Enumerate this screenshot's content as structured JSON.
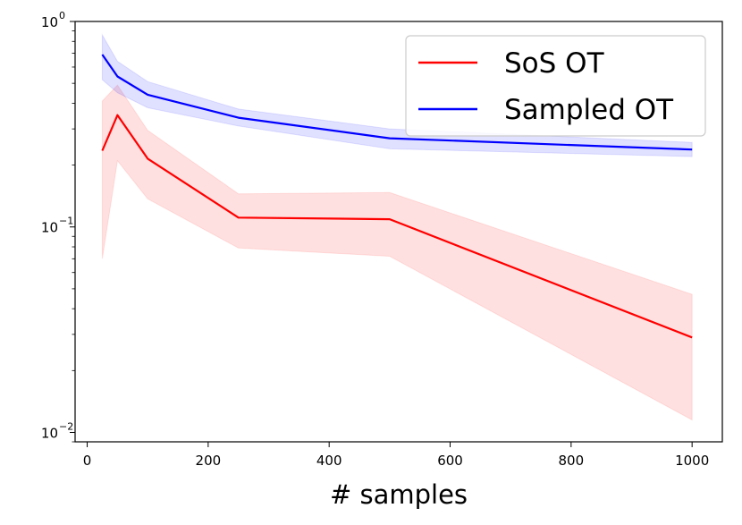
{
  "chart_data": {
    "type": "line",
    "title": "",
    "xlabel": "# samples",
    "ylabel": "",
    "yscale": "log",
    "xlim": [
      -20,
      1050
    ],
    "ylim": [
      0.009,
      1.0
    ],
    "xticks": [
      0,
      200,
      400,
      600,
      800,
      1000
    ],
    "xtick_labels": [
      "0",
      "200",
      "400",
      "600",
      "800",
      "1000"
    ],
    "yticks": [
      {
        "value": 1.0,
        "base": "10",
        "exp": "0"
      },
      {
        "value": 0.1,
        "base": "10",
        "exp": "−1"
      },
      {
        "value": 0.01,
        "base": "10",
        "exp": "−2"
      }
    ],
    "legend_position": "top-right",
    "series": [
      {
        "name": "SoS OT",
        "color": "#ff0000",
        "x": [
          25,
          50,
          100,
          250,
          500,
          1000
        ],
        "y": [
          0.235,
          0.35,
          0.215,
          0.111,
          0.109,
          0.029
        ],
        "lower": [
          0.07,
          0.21,
          0.137,
          0.079,
          0.072,
          0.0115
        ],
        "upper": [
          0.41,
          0.49,
          0.295,
          0.145,
          0.147,
          0.047
        ]
      },
      {
        "name": "Sampled OT",
        "color": "#0000ff",
        "x": [
          25,
          50,
          100,
          250,
          500,
          1000
        ],
        "y": [
          0.69,
          0.54,
          0.44,
          0.34,
          0.27,
          0.238
        ],
        "lower": [
          0.52,
          0.45,
          0.38,
          0.31,
          0.24,
          0.22
        ],
        "upper": [
          0.86,
          0.64,
          0.51,
          0.375,
          0.3,
          0.258
        ]
      }
    ]
  }
}
